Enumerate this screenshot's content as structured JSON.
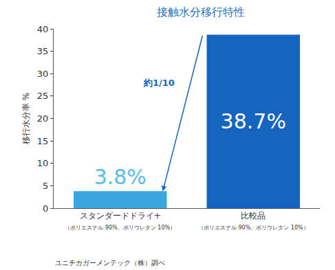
{
  "chart_data": {
    "type": "bar",
    "title": "接触水分移行特性",
    "categories": [
      "スタンダードドライ+",
      "比較品"
    ],
    "category_notes": [
      "（ポリエステル 90%、ポリウレタン 10%）",
      "（ポリエステル 90%、ポリウレタン 10%）"
    ],
    "values": [
      3.8,
      38.7
    ],
    "value_labels": [
      "3.8%",
      "38.7%"
    ],
    "data_labels": true,
    "colors": [
      "#3aa6e0",
      "#1565c0"
    ],
    "y_label": "移行水分率 %",
    "ylim": [
      0,
      40
    ],
    "yticks": [
      0,
      5,
      10,
      15,
      20,
      25,
      30,
      35,
      40
    ],
    "grid": false,
    "annotations": [
      {
        "text": "約1/10"
      }
    ],
    "source": "ユニチカガーメンテック（株）調べ"
  }
}
